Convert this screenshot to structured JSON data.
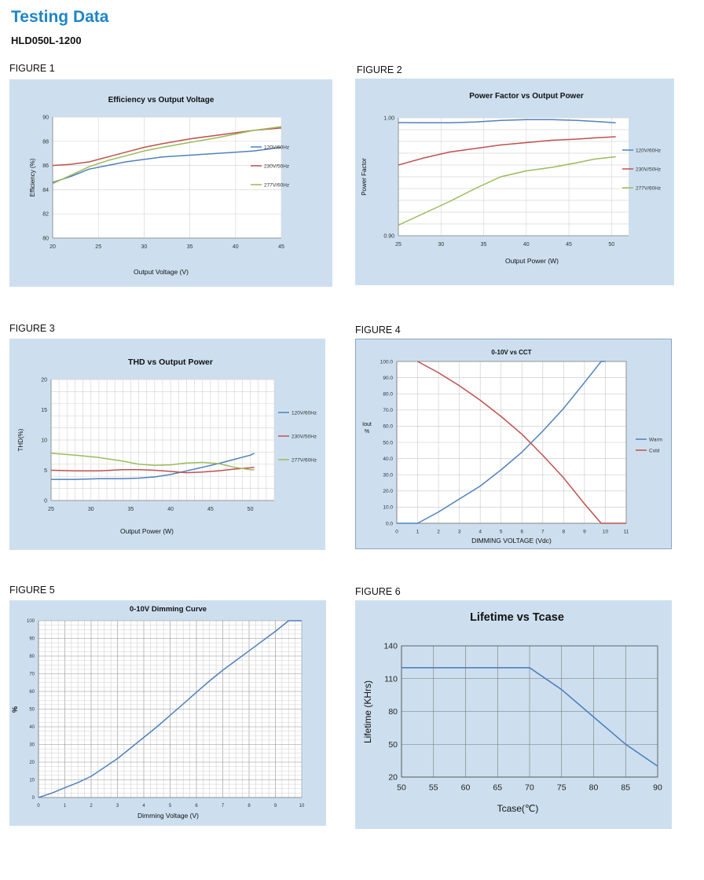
{
  "header": {
    "title": "Testing Data",
    "model": "HLD050L-1200"
  },
  "figures": [
    {
      "label": "FIGURE 1"
    },
    {
      "label": "FIGURE 2"
    },
    {
      "label": "FIGURE 3"
    },
    {
      "label": "FIGURE 4"
    },
    {
      "label": "FIGURE 5"
    },
    {
      "label": "FIGURE 6"
    }
  ],
  "chart_data": [
    {
      "type": "line",
      "title": "Efficiency vs Output Voltage",
      "xlabel": "Output Voltage (V)",
      "ylabel": "Efficiency (%)",
      "xlim": [
        20,
        45
      ],
      "ylim": [
        80,
        90
      ],
      "xticks": [
        "20",
        "25",
        "30",
        "35",
        "40",
        "45"
      ],
      "yticks": [
        "80",
        "82",
        "84",
        "86",
        "88",
        "90"
      ],
      "grid": true,
      "legend_position": "right",
      "series": [
        {
          "name": "120V/60Hz",
          "color": "#4f81bd",
          "x": [
            20,
            22,
            24,
            26,
            28,
            30,
            32,
            35,
            38,
            40,
            42,
            45
          ],
          "y": [
            84.6,
            85.1,
            85.7,
            86.0,
            86.3,
            86.5,
            86.7,
            86.85,
            87.0,
            87.1,
            87.2,
            87.5
          ]
        },
        {
          "name": "230V/50Hz",
          "color": "#c0504d",
          "x": [
            20,
            22,
            24,
            26,
            28,
            30,
            32,
            35,
            38,
            40,
            42,
            45
          ],
          "y": [
            86.0,
            86.1,
            86.3,
            86.7,
            87.1,
            87.5,
            87.8,
            88.2,
            88.5,
            88.7,
            88.9,
            89.1
          ]
        },
        {
          "name": "277V/60Hz",
          "color": "#9bbb59",
          "x": [
            20,
            22,
            24,
            26,
            28,
            30,
            32,
            35,
            38,
            40,
            42,
            45
          ],
          "y": [
            84.5,
            85.2,
            85.9,
            86.4,
            86.8,
            87.2,
            87.5,
            87.9,
            88.3,
            88.6,
            88.9,
            89.2
          ]
        }
      ]
    },
    {
      "type": "line",
      "title": "Power Factor vs Output Power",
      "xlabel": "Output Power (W)",
      "ylabel": "Power Factor",
      "xlim": [
        25,
        52
      ],
      "ylim": [
        0.9,
        1.0
      ],
      "xticks": [
        "25",
        "30",
        "35",
        "40",
        "45",
        "50"
      ],
      "xtick_values": [
        25,
        30,
        35,
        40,
        45,
        50
      ],
      "yticks": [
        "0.90",
        "1.00"
      ],
      "ytick_values": [
        0.9,
        1.0
      ],
      "y_gridlines": 10,
      "grid": true,
      "legend_position": "right",
      "series": [
        {
          "name": "120V/60Hz",
          "color": "#4f81bd",
          "x": [
            25,
            28,
            31,
            34,
            37,
            40,
            43,
            46,
            48,
            50.5
          ],
          "y": [
            0.996,
            0.9958,
            0.9958,
            0.9965,
            0.9978,
            0.9985,
            0.9985,
            0.9978,
            0.997,
            0.9958
          ]
        },
        {
          "name": "230V/50Hz",
          "color": "#c0504d",
          "x": [
            25,
            28,
            31,
            34,
            37,
            40,
            43,
            46,
            48,
            50.5
          ],
          "y": [
            0.96,
            0.966,
            0.971,
            0.974,
            0.977,
            0.979,
            0.981,
            0.982,
            0.983,
            0.984
          ]
        },
        {
          "name": "277V/60Hz",
          "color": "#9bbb59",
          "x": [
            25,
            28,
            31,
            34,
            37,
            40,
            43,
            46,
            48,
            50.5
          ],
          "y": [
            0.909,
            0.919,
            0.929,
            0.94,
            0.95,
            0.955,
            0.958,
            0.962,
            0.965,
            0.967
          ]
        }
      ]
    },
    {
      "type": "line",
      "title": "THD vs Output Power",
      "xlabel": "Output Power (W)",
      "ylabel": "THD(%)",
      "xlim": [
        25,
        53
      ],
      "ylim": [
        0,
        20
      ],
      "xticks": [
        "25",
        "30",
        "35",
        "40",
        "45",
        "50"
      ],
      "xtick_values": [
        25,
        30,
        35,
        40,
        45,
        50
      ],
      "yticks": [
        "0",
        "5",
        "10",
        "15",
        "20"
      ],
      "ytick_values": [
        0,
        5,
        10,
        15,
        20
      ],
      "y_gridlines": 10,
      "x_gridlines": 28,
      "grid": true,
      "legend_position": "right",
      "series": [
        {
          "name": "120V/60Hz",
          "color": "#4f81bd",
          "x": [
            25,
            28,
            31,
            34,
            36,
            38,
            40,
            42,
            44,
            46,
            48,
            50,
            50.5
          ],
          "y": [
            3.5,
            3.5,
            3.6,
            3.6,
            3.7,
            3.9,
            4.3,
            4.9,
            5.5,
            6.1,
            6.8,
            7.5,
            7.8
          ]
        },
        {
          "name": "230V/50Hz",
          "color": "#c0504d",
          "x": [
            25,
            28,
            31,
            34,
            36,
            38,
            40,
            42,
            44,
            46,
            48,
            50,
            50.5
          ],
          "y": [
            5.0,
            4.9,
            4.9,
            5.1,
            5.1,
            5.0,
            4.8,
            4.6,
            4.7,
            4.9,
            5.2,
            5.4,
            5.5
          ]
        },
        {
          "name": "277V/60Hz",
          "color": "#9bbb59",
          "x": [
            25,
            28,
            31,
            34,
            36,
            38,
            40,
            42,
            44,
            46,
            48,
            50,
            50.5
          ],
          "y": [
            7.8,
            7.5,
            7.1,
            6.5,
            6.0,
            5.8,
            5.9,
            6.2,
            6.3,
            6.1,
            5.5,
            5.1,
            5.1
          ]
        }
      ]
    },
    {
      "type": "line",
      "title": "0-10V vs CCT",
      "xlabel": "DIMMING VOLTAGE (Vdc)",
      "ylabel": "Iout\n%",
      "xlim": [
        0,
        11
      ],
      "ylim": [
        0,
        100
      ],
      "xticks": [
        "0",
        "1",
        "2",
        "3",
        "4",
        "5",
        "6",
        "7",
        "8",
        "9",
        "10",
        "11"
      ],
      "yticks": [
        "0.0",
        "10.0",
        "20.0",
        "30.0",
        "40.0",
        "50.0",
        "60.0",
        "70.0",
        "80.0",
        "90.0",
        "100.0"
      ],
      "grid": true,
      "legend_position": "right",
      "series": [
        {
          "name": "Warm",
          "color": "#4f81bd",
          "x": [
            0,
            1,
            2,
            3,
            4,
            5,
            6,
            7,
            8,
            9,
            9.8,
            10
          ],
          "y": [
            0,
            0,
            7,
            15,
            23,
            33,
            44,
            57,
            71,
            87,
            100,
            100
          ]
        },
        {
          "name": "Cold",
          "color": "#c0504d",
          "x": [
            1,
            2,
            3,
            4,
            5,
            6,
            7,
            8,
            9,
            9.8,
            10,
            11
          ],
          "y": [
            100,
            93,
            85,
            76,
            66,
            55,
            42,
            28,
            12,
            0,
            0,
            0
          ]
        }
      ]
    },
    {
      "type": "line",
      "title": "0-10V Dimming Curve",
      "xlabel": "Dimming Voltage (V)",
      "ylabel": "%",
      "xlim": [
        0,
        10
      ],
      "ylim": [
        0,
        100
      ],
      "xticks": [
        "0",
        "1",
        "2",
        "3",
        "4",
        "5",
        "6",
        "7",
        "8",
        "9",
        "10"
      ],
      "yticks": [
        "0",
        "10",
        "20",
        "30",
        "40",
        "50",
        "60",
        "70",
        "80",
        "90",
        "100"
      ],
      "grid": true,
      "series": [
        {
          "name": "",
          "color": "#4f81bd",
          "x": [
            0,
            0.5,
            1,
            1.5,
            2,
            2.5,
            3,
            3.5,
            4,
            4.5,
            5,
            5.5,
            6,
            6.5,
            7,
            7.5,
            8,
            8.5,
            9,
            9.5,
            10
          ],
          "y": [
            0,
            2.5,
            5.5,
            8.5,
            12,
            17,
            22,
            28,
            34,
            40,
            46.5,
            53,
            59.5,
            66,
            72,
            77.5,
            83,
            88.5,
            94,
            100,
            100
          ]
        }
      ]
    },
    {
      "type": "line",
      "title": "Lifetime vs Tcase",
      "xlabel": "Tcase(℃)",
      "ylabel": "Lifetime (KHrs)",
      "xlim": [
        50,
        90
      ],
      "ylim": [
        20,
        140
      ],
      "xticks": [
        "50",
        "55",
        "60",
        "65",
        "70",
        "75",
        "80",
        "85",
        "90"
      ],
      "yticks": [
        "20",
        "50",
        "80",
        "110",
        "140"
      ],
      "grid": true,
      "series": [
        {
          "name": "",
          "color": "#4f81bd",
          "x": [
            50,
            70,
            75,
            80,
            85,
            90
          ],
          "y": [
            120,
            120,
            100,
            75,
            50,
            30
          ]
        }
      ]
    }
  ]
}
